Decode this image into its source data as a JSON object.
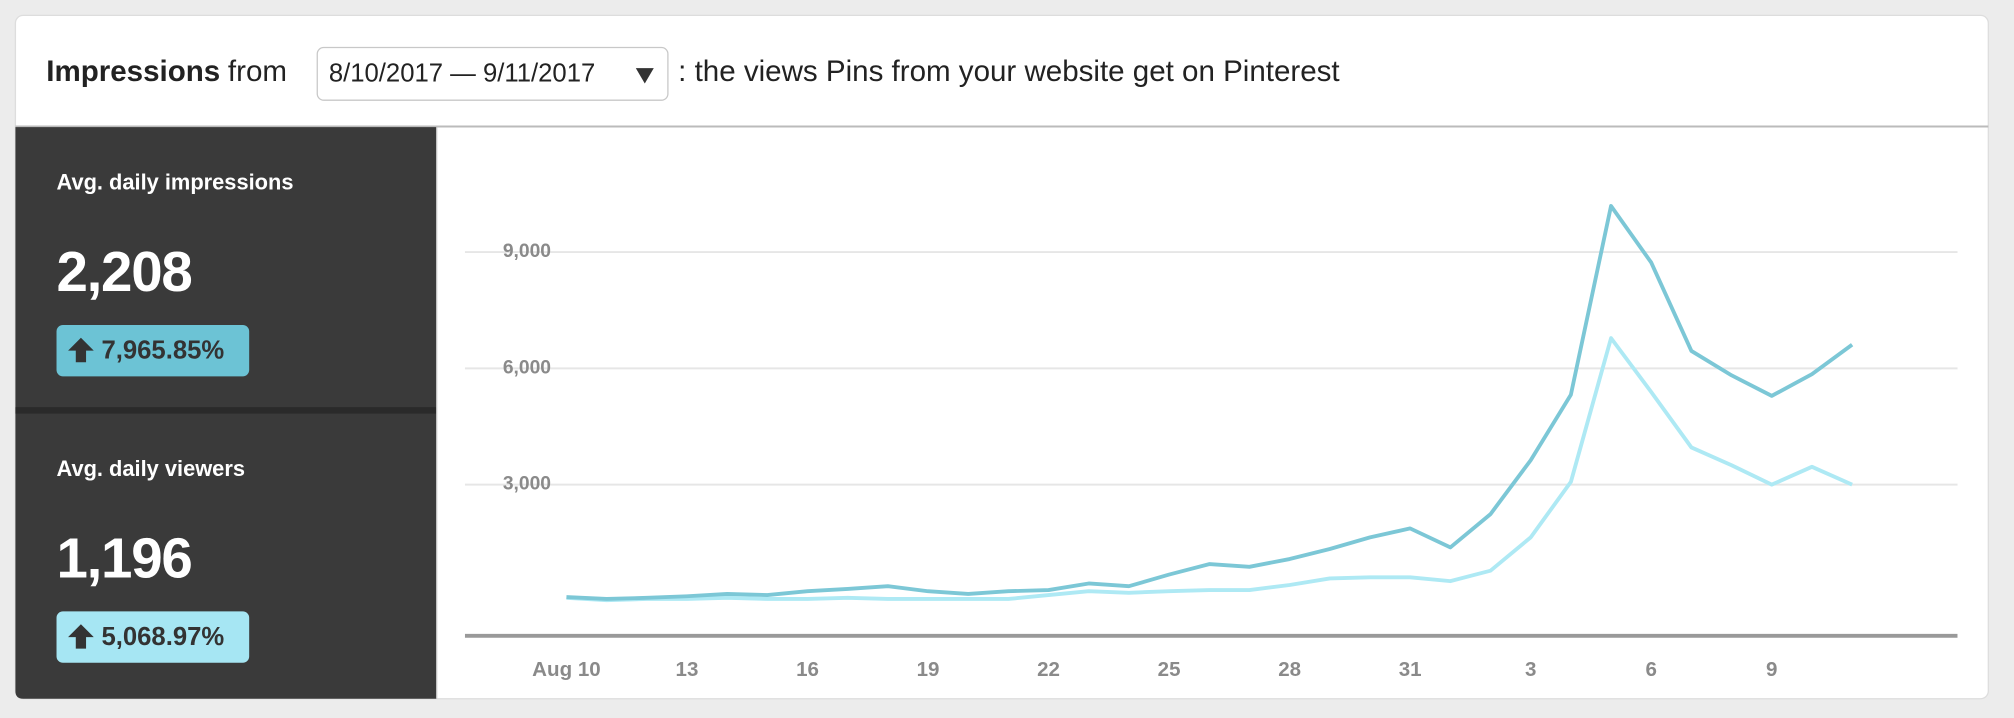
{
  "header": {
    "title": "Impressions",
    "from": "from",
    "date_range": "8/10/2017 — 9/11/2017",
    "description": ": the views Pins from your website get on Pinterest"
  },
  "summary": [
    {
      "label": "Avg. daily impressions",
      "value": "2,208",
      "change": "7,965.85%",
      "color": "#6cc3d5"
    },
    {
      "label": "Avg. daily viewers",
      "value": "1,196",
      "change": "5,068.97%",
      "color": "#a6e6f3"
    }
  ],
  "chart_data": {
    "type": "line",
    "categories": [
      "Aug 10",
      null,
      null,
      "13",
      null,
      null,
      "16",
      null,
      null,
      "19",
      null,
      null,
      "22",
      null,
      null,
      "25",
      null,
      null,
      "28",
      null,
      null,
      "31",
      null,
      null,
      "3",
      null,
      null,
      "6",
      null,
      null,
      "9",
      null,
      null
    ],
    "series": [
      {
        "color": "#7cc7d6",
        "values": [
          100,
          50,
          80,
          120,
          180,
          150,
          250,
          310,
          380,
          250,
          180,
          250,
          280,
          450,
          380,
          680,
          950,
          880,
          1080,
          1340,
          1640,
          1870,
          1380,
          2240,
          3630,
          5320,
          10190,
          8730,
          6450,
          5820,
          5290,
          5850,
          6610
        ]
      },
      {
        "color": "#aee9f4",
        "values": [
          80,
          20,
          50,
          50,
          80,
          50,
          50,
          80,
          50,
          50,
          50,
          50,
          150,
          250,
          210,
          250,
          280,
          280,
          410,
          580,
          610,
          610,
          510,
          780,
          1640,
          3070,
          6780,
          5390,
          3960,
          3500,
          3000,
          3460,
          3000
        ]
      }
    ],
    "ylim": [
      -900,
      10500
    ],
    "yticks": [
      {
        "value": 3000,
        "label": "3,000"
      },
      {
        "value": 6000,
        "label": "6,000"
      },
      {
        "value": 9000,
        "label": "9,000"
      }
    ],
    "grid": true
  }
}
